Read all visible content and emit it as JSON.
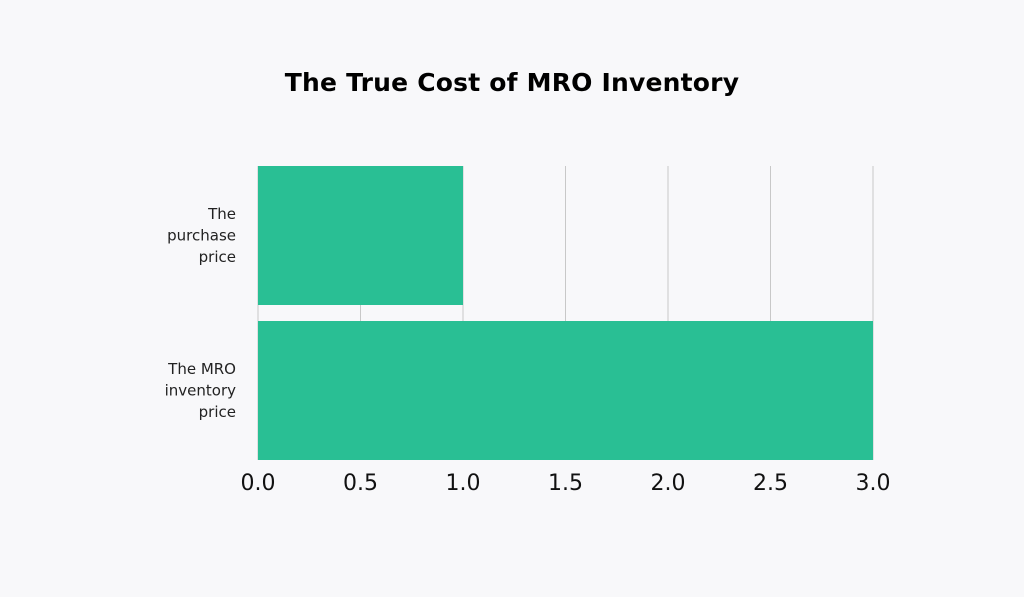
{
  "chart_data": {
    "type": "bar",
    "orientation": "horizontal",
    "title": "The True Cost of MRO Inventory",
    "categories": [
      [
        "The",
        "purchase",
        "price"
      ],
      [
        "The MRO",
        "inventory",
        "price"
      ]
    ],
    "values": [
      1.0,
      3.0
    ],
    "xlim": [
      0,
      3.0
    ],
    "xticks": [
      "0.0",
      "0.5",
      "1.0",
      "1.5",
      "2.0",
      "2.5",
      "3.0"
    ],
    "xlabel": "",
    "ylabel": "",
    "grid": "vertical",
    "colors": {
      "bar": "#29bf94",
      "grid": "#c8c8c8",
      "background": "#f8f8fa",
      "title": "#000000"
    }
  }
}
